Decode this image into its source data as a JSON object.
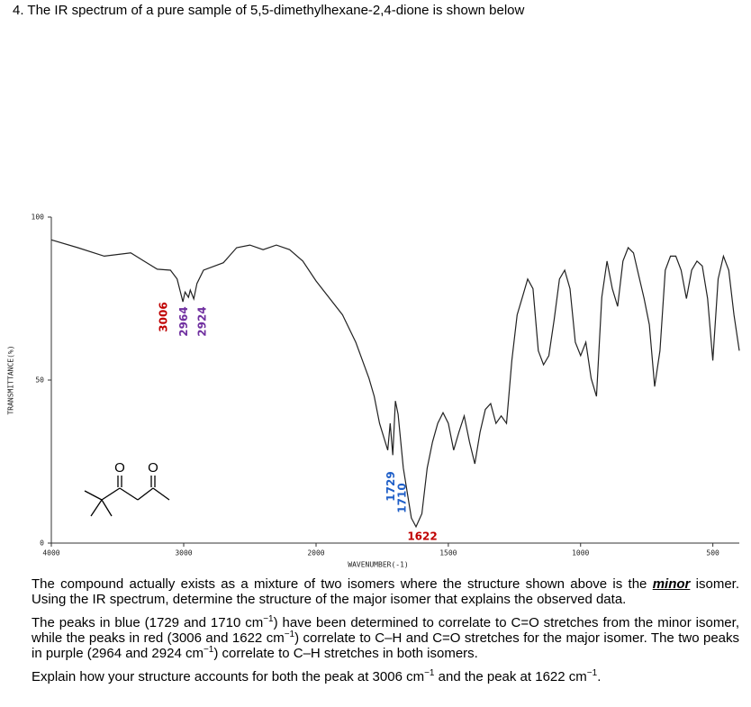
{
  "question": {
    "title": "4. The IR spectrum of a pure sample of 5,5-dimethylhexane-2,4-dione is shown below"
  },
  "structure": {
    "atoms": [
      "O",
      "O"
    ]
  },
  "chart_data": {
    "type": "line",
    "xlabel": "WAVENUMBER(-1)",
    "ylabel": "TRANSMITTANCE(%)",
    "xlim": [
      4000,
      400
    ],
    "xscale_break": 2000,
    "xticks": [
      4000,
      3000,
      2000,
      1500,
      1000,
      500
    ],
    "ylim": [
      0,
      100
    ],
    "yticks": [
      0,
      50,
      100
    ],
    "color": "#222222",
    "x": [
      4000,
      3800,
      3600,
      3400,
      3300,
      3200,
      3100,
      3050,
      3006,
      2990,
      2964,
      2950,
      2924,
      2900,
      2850,
      2700,
      2600,
      2500,
      2400,
      2300,
      2200,
      2100,
      2000,
      1900,
      1850,
      1800,
      1780,
      1760,
      1729,
      1720,
      1710,
      1700,
      1690,
      1670,
      1640,
      1622,
      1600,
      1580,
      1560,
      1540,
      1520,
      1500,
      1480,
      1460,
      1440,
      1420,
      1400,
      1380,
      1360,
      1340,
      1320,
      1300,
      1280,
      1260,
      1240,
      1220,
      1200,
      1180,
      1160,
      1140,
      1120,
      1100,
      1080,
      1060,
      1040,
      1020,
      1000,
      980,
      960,
      940,
      920,
      900,
      880,
      860,
      840,
      820,
      800,
      780,
      760,
      740,
      720,
      700,
      680,
      660,
      640,
      620,
      600,
      580,
      560,
      540,
      520,
      500,
      480,
      460,
      440,
      420,
      400
    ],
    "values": [
      93,
      90.6,
      88,
      89,
      86.5,
      84,
      83.7,
      81,
      74,
      77,
      75.4,
      77.6,
      74.9,
      79.6,
      83.7,
      86,
      90.6,
      91.4,
      90,
      91.4,
      90,
      86.5,
      80.4,
      70,
      61.6,
      50.5,
      45,
      36.7,
      28.5,
      36.7,
      27,
      43.6,
      39.5,
      23,
      7.7,
      5,
      9,
      23,
      31,
      36.7,
      40,
      36.7,
      28.5,
      34,
      39,
      31,
      24.3,
      34,
      41,
      42.8,
      36.7,
      39,
      36.7,
      56,
      70,
      75.4,
      81,
      78,
      59,
      54.7,
      57.5,
      68.5,
      81,
      83.7,
      78,
      61.6,
      57.5,
      61.6,
      50.5,
      45,
      75.4,
      86.5,
      78,
      72.6,
      86.5,
      90.6,
      89,
      82,
      75,
      67,
      48,
      59,
      83.7,
      88,
      88,
      83.7,
      75,
      83.7,
      86.5,
      85,
      75,
      56,
      81,
      88,
      83.7,
      70,
      59
    ],
    "peak_labels": [
      {
        "value": 3006,
        "color": "#c00000",
        "orientation": "vertical"
      },
      {
        "value": 2964,
        "color": "#7030a0",
        "orientation": "vertical"
      },
      {
        "value": 2924,
        "color": "#7030a0",
        "orientation": "vertical"
      },
      {
        "value": 1729,
        "color": "#1f5fc8",
        "orientation": "vertical"
      },
      {
        "value": 1710,
        "color": "#1f5fc8",
        "orientation": "vertical"
      },
      {
        "value": 1622,
        "color": "#c00000",
        "orientation": "horizontal"
      }
    ]
  },
  "paragraphs": [
    [
      "The compound actually exists as a mixture of two isomers where the structure shown above is the ",
      {
        "emph": "minor"
      },
      " isomer. Using the IR spectrum, determine the structure of the major isomer that explains the observed data."
    ],
    [
      "The peaks in blue (1729 and 1710 cm",
      {
        "sup": "−1"
      },
      ") have been determined to correlate to C=O stretches from the minor isomer, while the peaks in red (3006 and 1622 cm",
      {
        "sup": "−1"
      },
      ") correlate to C–H and C=O stretches for the major isomer. The two peaks in purple (2964 and 2924 cm",
      {
        "sup": "−1"
      },
      ") correlate to C–H stretches in both isomers."
    ],
    [
      "Explain how your structure accounts for both the peak at 3006 cm",
      {
        "sup": "−1"
      },
      " and the peak at 1622 cm",
      {
        "sup": "−1"
      },
      "."
    ]
  ]
}
